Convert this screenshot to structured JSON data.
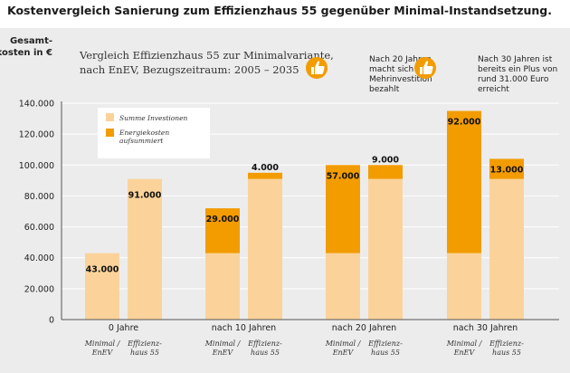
{
  "page_title": "Kostenvergleich Sanierung zum Effizienzhaus 55 gegenüber Minimal-Instandsetzung.",
  "chart_data": {
    "type": "bar",
    "title": "Vergleich Effizienzhaus 55 zur Minimalvariante, nach EnEV, Bezugszeitraum: 2005 – 2035",
    "title_lines": [
      "Vergleich Effizienzhaus 55 zur Minimalvariante,",
      "nach EnEV, Bezugszeitraum: 2005 – 2035"
    ],
    "ylabel_lines": [
      "Gesamt-",
      "kosten in €"
    ],
    "ylim": [
      0,
      140000
    ],
    "y_ticks": [
      {
        "value": 0,
        "label": "0"
      },
      {
        "value": 20000,
        "label": "20.000"
      },
      {
        "value": 40000,
        "label": "40.000"
      },
      {
        "value": 60000,
        "label": "60.000"
      },
      {
        "value": 80000,
        "label": "80.000"
      },
      {
        "value": 100000,
        "label": "100.000"
      },
      {
        "value": 120000,
        "label": "120.000"
      },
      {
        "value": 140000,
        "label": "140.000"
      }
    ],
    "grid": true,
    "stacked": true,
    "bar_labels": [
      [
        "Minimal /",
        "EnEV"
      ],
      [
        "Effizienz-",
        "haus 55"
      ]
    ],
    "categories": [
      "0 Jahre",
      "nach 10 Jahren",
      "nach 20 Jahren",
      "nach 30 Jahren"
    ],
    "series": [
      {
        "name": "Summe Investionen",
        "color": "#fbd39a"
      },
      {
        "name": "Energiekosten aufsummiert",
        "name_lines": [
          "Energiekosten",
          "aufsummiert"
        ],
        "color": "#f29c00"
      }
    ],
    "groups": [
      {
        "category": "0 Jahre",
        "bars": [
          {
            "investment": 43000,
            "energy": 0,
            "label": "43.000"
          },
          {
            "investment": 91000,
            "energy": 0,
            "label": "91.000"
          }
        ]
      },
      {
        "category": "nach 10 Jahren",
        "bars": [
          {
            "investment": 43000,
            "energy": 29000,
            "label": "29.000"
          },
          {
            "investment": 91000,
            "energy": 4000,
            "label": "4.000"
          }
        ]
      },
      {
        "category": "nach 20 Jahren",
        "bars": [
          {
            "investment": 43000,
            "energy": 57000,
            "label": "57.000"
          },
          {
            "investment": 91000,
            "energy": 9000,
            "label": "9.000"
          }
        ]
      },
      {
        "category": "nach 30 Jahren",
        "bars": [
          {
            "investment": 43000,
            "energy": 92000,
            "label": "92.000"
          },
          {
            "investment": 91000,
            "energy": 13000,
            "label": "13.000"
          }
        ]
      }
    ],
    "notes": [
      {
        "icon": "thumbs-up-icon",
        "lines": [
          "Nach 20 Jahren",
          "macht sich die",
          "Mehrinvestition",
          "bezahlt"
        ]
      },
      {
        "icon": "thumbs-up-icon",
        "lines": [
          "Nach 30 Jahren ist",
          "bereits ein Plus von",
          "rund 31.000 Euro",
          "erreicht"
        ]
      }
    ],
    "legend_position": "top-left",
    "colors": {
      "background": "#ececec",
      "light": "#fbd39a",
      "dark": "#f29c00",
      "axis": "#555555",
      "grid": "#ffffff",
      "icon": "#f29c00"
    }
  }
}
